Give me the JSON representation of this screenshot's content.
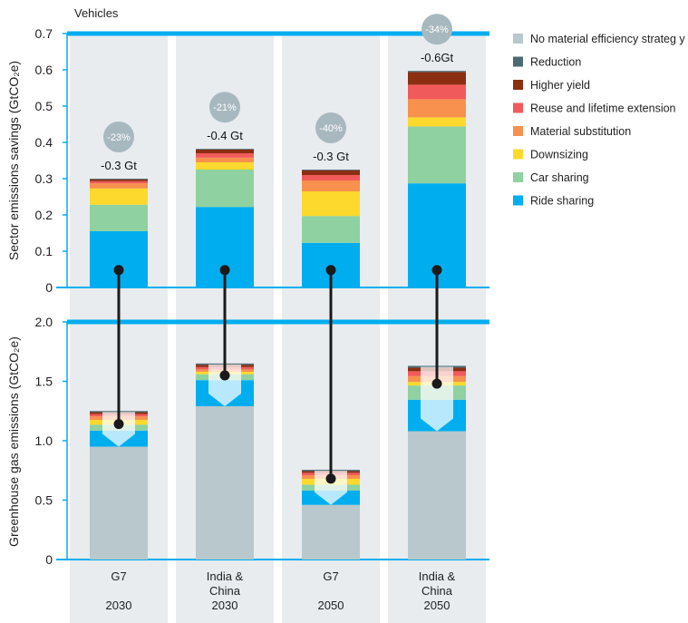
{
  "chart_data": {
    "type": "bar",
    "title": "Vehicles",
    "categories": [
      {
        "line1": "G7",
        "line2": "",
        "year": "2030"
      },
      {
        "line1": "India &",
        "line2": "China",
        "year": "2030"
      },
      {
        "line1": "G7",
        "line2": "",
        "year": "2050"
      },
      {
        "line1": "India &",
        "line2": "China",
        "year": "2050"
      }
    ],
    "legend": [
      {
        "name": "No material efficiency strateg y",
        "color": "#b8c8cc"
      },
      {
        "name": "Reduction",
        "color": "#4a6a74"
      },
      {
        "name": "Higher yield",
        "color": "#8b2e12"
      },
      {
        "name": "Reuse and lifetime extension",
        "color": "#f15a5a"
      },
      {
        "name": "Material substitution",
        "color": "#f7914d"
      },
      {
        "name": "Downsizing",
        "color": "#fcd92c"
      },
      {
        "name": "Car sharing",
        "color": "#8fd1a0"
      },
      {
        "name": "Ride sharing",
        "color": "#00aeef"
      }
    ],
    "top_panel": {
      "ylabel": "Sector emissions savings (GtCO₂e)",
      "ylim": [
        0,
        0.7
      ],
      "yticks": [
        "0",
        "0.1",
        "0.2",
        "0.3",
        "0.4",
        "0.5",
        "0.6",
        "0.7"
      ],
      "series": [
        {
          "name": "Ride sharing",
          "values": [
            0.155,
            0.222,
            0.123,
            0.287
          ]
        },
        {
          "name": "Car sharing",
          "values": [
            0.073,
            0.103,
            0.074,
            0.157
          ]
        },
        {
          "name": "Downsizing",
          "values": [
            0.045,
            0.02,
            0.068,
            0.025
          ]
        },
        {
          "name": "Material substitution",
          "values": [
            0.014,
            0.013,
            0.03,
            0.05
          ]
        },
        {
          "name": "Reuse and lifetime extension",
          "values": [
            0.006,
            0.012,
            0.015,
            0.04
          ]
        },
        {
          "name": "Higher yield",
          "values": [
            0.005,
            0.01,
            0.013,
            0.035
          ]
        },
        {
          "name": "Reduction",
          "values": [
            0.002,
            0.002,
            0.002,
            0.003
          ]
        }
      ],
      "total_labels": [
        "-0.3 Gt",
        "-0.4 Gt",
        "-0.3 Gt",
        "-0.6Gt"
      ],
      "percent_labels": [
        "-23%",
        "-21%",
        "-40%",
        "-34%"
      ]
    },
    "bottom_panel": {
      "ylabel": "Greenhouse gas emissions (GtCO₂e)",
      "ylim": [
        0,
        2.0
      ],
      "yticks": [
        "0",
        "0.5",
        "1.0",
        "1.5",
        "2.0"
      ],
      "baseline_series": {
        "name": "No material efficiency strateg y",
        "values": [
          0.95,
          1.29,
          0.46,
          1.08
        ]
      },
      "savings_stack": [
        {
          "name": "Ride sharing",
          "values": [
            0.135,
            0.22,
            0.12,
            0.265
          ]
        },
        {
          "name": "Car sharing",
          "values": [
            0.05,
            0.05,
            0.05,
            0.12
          ]
        },
        {
          "name": "Downsizing",
          "values": [
            0.04,
            0.02,
            0.05,
            0.03
          ]
        },
        {
          "name": "Material substitution",
          "values": [
            0.03,
            0.02,
            0.03,
            0.05
          ]
        },
        {
          "name": "Reuse and lifetime extension",
          "values": [
            0.02,
            0.02,
            0.02,
            0.04
          ]
        },
        {
          "name": "Higher yield",
          "values": [
            0.015,
            0.02,
            0.015,
            0.03
          ]
        },
        {
          "name": "Reduction",
          "values": [
            0.01,
            0.01,
            0.01,
            0.015
          ]
        }
      ],
      "connector_values": [
        1.14,
        1.55,
        0.68,
        1.48
      ]
    }
  }
}
